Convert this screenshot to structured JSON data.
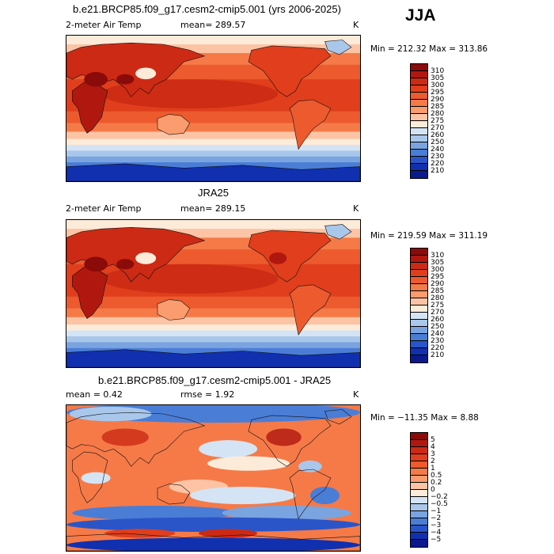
{
  "season_label": "JJA",
  "panels": [
    {
      "title": "b.e21.BRCP85.f09_g17.cesm2-cmip5.001 (yrs 2006-2025)",
      "variable": "2-meter Air Temp",
      "mean_text": "mean= 289.57",
      "unit": "K",
      "minmax": "Min = 212.32 Max = 313.86",
      "colorbar_labels": [
        "310",
        "305",
        "300",
        "295",
        "290",
        "285",
        "280",
        "275",
        "270",
        "260",
        "250",
        "240",
        "230",
        "220",
        "210"
      ],
      "colorbar_colors": [
        "#8b0a0a",
        "#b0180f",
        "#cc2a14",
        "#e03e1c",
        "#ec5a2e",
        "#f57a48",
        "#fa9c6e",
        "#fcc4a4",
        "#fdebd9",
        "#d4e4f4",
        "#a9c7ea",
        "#7aa4e0",
        "#4a7dd6",
        "#2a55c8",
        "#1030b0",
        "#0a1a8c"
      ],
      "map_style": "temperature"
    },
    {
      "title": "JRA25",
      "variable": "2-meter Air Temp",
      "mean_text": "mean= 289.15",
      "unit": "K",
      "minmax": "Min = 219.59 Max = 311.19",
      "colorbar_labels": [
        "310",
        "305",
        "300",
        "295",
        "290",
        "285",
        "280",
        "275",
        "270",
        "260",
        "250",
        "240",
        "230",
        "220",
        "210"
      ],
      "colorbar_colors": [
        "#8b0a0a",
        "#b0180f",
        "#cc2a14",
        "#e03e1c",
        "#ec5a2e",
        "#f57a48",
        "#fa9c6e",
        "#fcc4a4",
        "#fdebd9",
        "#d4e4f4",
        "#a9c7ea",
        "#7aa4e0",
        "#4a7dd6",
        "#2a55c8",
        "#1030b0",
        "#0a1a8c"
      ],
      "map_style": "temperature"
    },
    {
      "title": "b.e21.BRCP85.f09_g17.cesm2-cmip5.001 - JRA25",
      "mean_text": "mean =    0.42",
      "rmse_text": "rmse =    1.92",
      "unit": "K",
      "minmax": "Min = −11.35 Max =    8.88",
      "colorbar_labels": [
        "5",
        "4",
        "3",
        "2",
        "1",
        "0.5",
        "0.2",
        "0",
        "−0.2",
        "−0.5",
        "−1",
        "−2",
        "−3",
        "−4",
        "−5"
      ],
      "colorbar_colors": [
        "#8b0a0a",
        "#b0180f",
        "#cc2a14",
        "#e03e1c",
        "#ec5a2e",
        "#f57a48",
        "#fa9c6e",
        "#fcc4a4",
        "#fdebd9",
        "#d4e4f4",
        "#a9c7ea",
        "#7aa4e0",
        "#4a7dd6",
        "#2a55c8",
        "#1030b0",
        "#0a1a8c"
      ],
      "map_style": "difference"
    }
  ]
}
